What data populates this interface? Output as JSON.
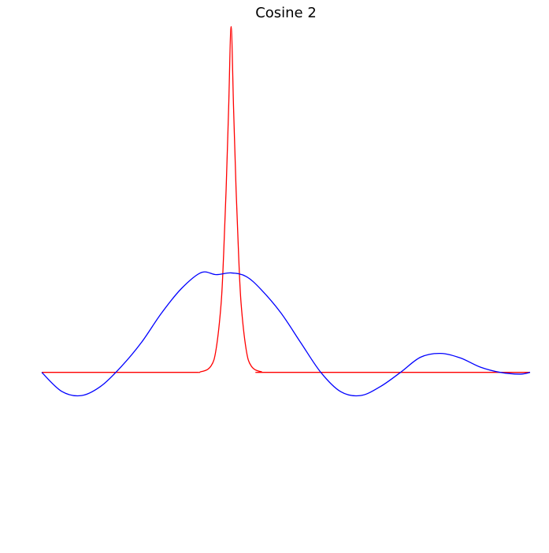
{
  "chart_data": {
    "type": "line",
    "title": "Cosine 2",
    "xlabel": "",
    "ylabel": "",
    "axes_visible": false,
    "grid": false,
    "legend": "none",
    "xlim": [
      -3.8,
      6.0
    ],
    "ylim": [
      -0.44,
      0.99
    ],
    "series": [
      {
        "color": "#ff0000",
        "x": [
          -3.8,
          -1.0,
          -0.6,
          -0.4,
          -0.3,
          -0.2,
          -0.15,
          -0.1,
          -0.05,
          0.0,
          0.05,
          0.1,
          0.15,
          0.2,
          0.3,
          0.4,
          0.6,
          1.0,
          6.0
        ],
        "y": [
          0.0,
          0.0,
          0.002,
          0.019,
          0.067,
          0.197,
          0.336,
          0.52,
          0.749,
          0.984,
          0.749,
          0.52,
          0.336,
          0.197,
          0.067,
          0.019,
          0.002,
          0.0,
          0.0
        ]
      },
      {
        "color": "#0000ff",
        "x": [
          -3.8,
          -3.4,
          -3.0,
          -2.6,
          -2.2,
          -1.8,
          -1.4,
          -1.0,
          -0.6,
          -0.3,
          0.0,
          0.3,
          0.6,
          1.0,
          1.4,
          1.8,
          2.2,
          2.6,
          3.0,
          3.4,
          3.8,
          4.2,
          4.6,
          5.0,
          5.4,
          5.8,
          6.0
        ],
        "y": [
          0.0,
          -0.054,
          -0.066,
          -0.038,
          0.017,
          0.085,
          0.168,
          0.238,
          0.284,
          0.278,
          0.283,
          0.273,
          0.236,
          0.169,
          0.084,
          0.0,
          -0.055,
          -0.066,
          -0.04,
          0.0,
          0.043,
          0.054,
          0.041,
          0.015,
          0.0,
          -0.005,
          0.0
        ]
      }
    ]
  }
}
